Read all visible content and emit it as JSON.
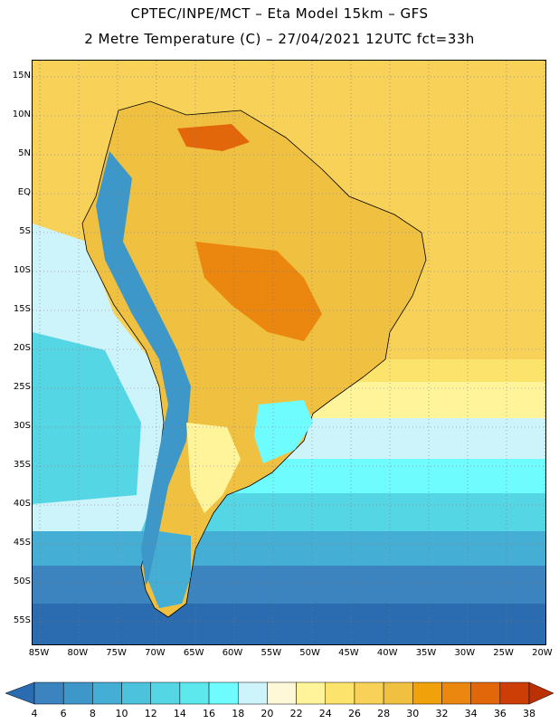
{
  "header": {
    "line1": "CPTEC/INPE/MCT –  Eta Model 15km – GFS",
    "line2": "2 Metre Temperature (C) – 27/04/2021 12UTC fct=33h"
  },
  "map": {
    "lat_labels": [
      "15N",
      "10N",
      "5N",
      "EQ",
      "5S",
      "10S",
      "15S",
      "20S",
      "25S",
      "30S",
      "35S",
      "40S",
      "45S",
      "50S",
      "55S"
    ],
    "lon_labels": [
      "85W",
      "80W",
      "75W",
      "70W",
      "65W",
      "60W",
      "55W",
      "50W",
      "45W",
      "40W",
      "35W",
      "30W",
      "25W",
      "20W"
    ]
  },
  "legend": {
    "labels": [
      "4",
      "6",
      "8",
      "10",
      "12",
      "14",
      "16",
      "18",
      "20",
      "22",
      "24",
      "26",
      "28",
      "30",
      "32",
      "34",
      "36",
      "38"
    ],
    "colors": [
      "#2b6cb0",
      "#3b84bf",
      "#3d98c9",
      "#45aed4",
      "#4cc2dc",
      "#54d6e4",
      "#5ce8ec",
      "#6ffcff",
      "#cdf3fb",
      "#fff8d8",
      "#fff49a",
      "#fce36c",
      "#f7d158",
      "#f0c140",
      "#f1a10a",
      "#eb860e",
      "#e2660a",
      "#cc3e06",
      "#b93105"
    ]
  }
}
